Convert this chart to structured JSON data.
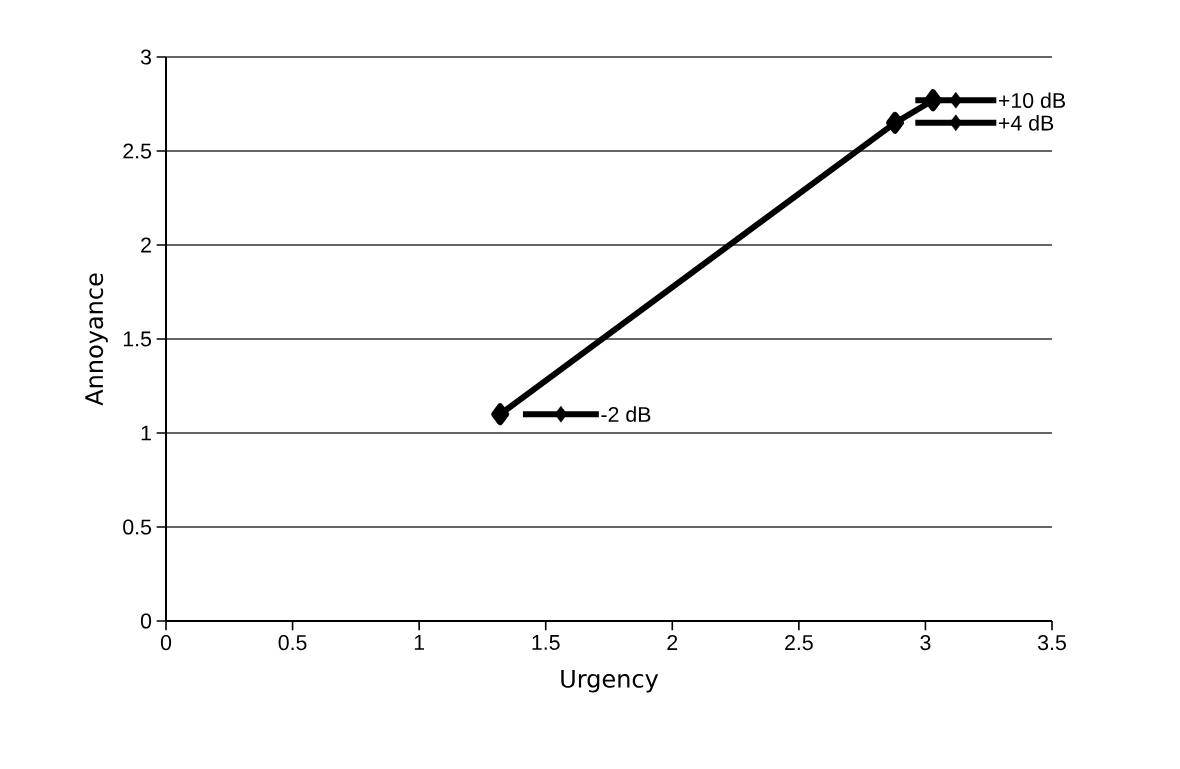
{
  "chart_data": {
    "type": "line",
    "xlabel": "Urgency",
    "ylabel": "Annoyance",
    "xlim": [
      0,
      3.5
    ],
    "ylim": [
      0,
      3
    ],
    "xticks": [
      0,
      0.5,
      1,
      1.5,
      2,
      2.5,
      3,
      3.5
    ],
    "yticks": [
      0,
      0.5,
      1,
      1.5,
      2,
      2.5,
      3
    ],
    "grid": "y",
    "marker": "diamond",
    "line_style": "solid",
    "series": [
      {
        "color": "#000000",
        "x": [
          1.32,
          2.88,
          3.03
        ],
        "values": [
          1.1,
          2.65,
          2.77
        ]
      },
      {
        "type": "scatter",
        "name": "-2 dB",
        "color": "#000000",
        "x": [
          1.56
        ],
        "values": [
          1.1
        ],
        "xerrors": [
          0.15
        ]
      },
      {
        "type": "scatter",
        "name": "+4 dB",
        "color": "#000000",
        "x": [
          3.12
        ],
        "values": [
          2.65
        ],
        "xerrors": [
          0.16
        ]
      },
      {
        "type": "scatter",
        "name": "+10 dB",
        "color": "#000000",
        "x": [
          3.12
        ],
        "values": [
          2.77
        ],
        "xerrors": [
          0.16
        ]
      }
    ]
  }
}
